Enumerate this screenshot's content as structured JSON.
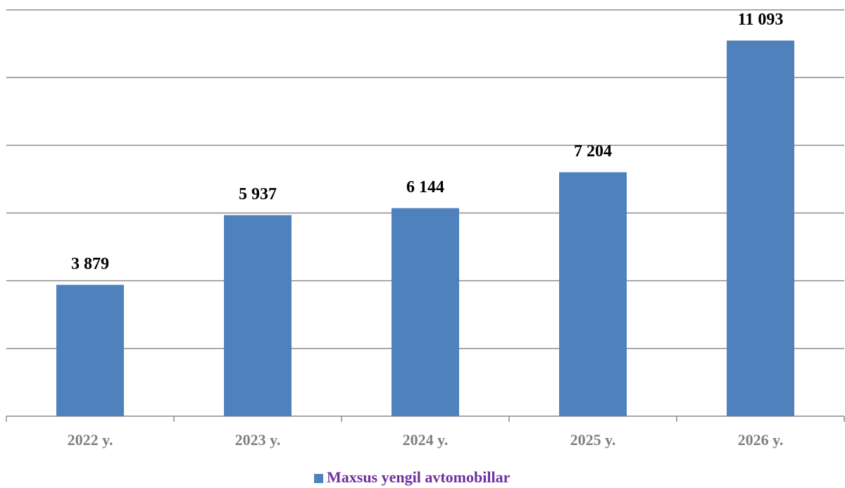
{
  "chart_data": {
    "type": "bar",
    "categories": [
      "2022 y.",
      "2023 y.",
      "2024 y.",
      "2025 y.",
      "2026 y."
    ],
    "series": [
      {
        "name": "Maxsus yengil avtomobillar",
        "color": "#4f81bd",
        "values": [
          3879,
          5937,
          6144,
          7204,
          11093
        ],
        "value_labels": [
          "3 879",
          "5 937",
          "6 144",
          "7 204",
          "11 093"
        ]
      }
    ],
    "ylim": [
      0,
      12000
    ],
    "yticks": [
      0,
      2000,
      4000,
      6000,
      8000,
      10000,
      12000
    ],
    "grid": true,
    "legend": "bottom"
  }
}
